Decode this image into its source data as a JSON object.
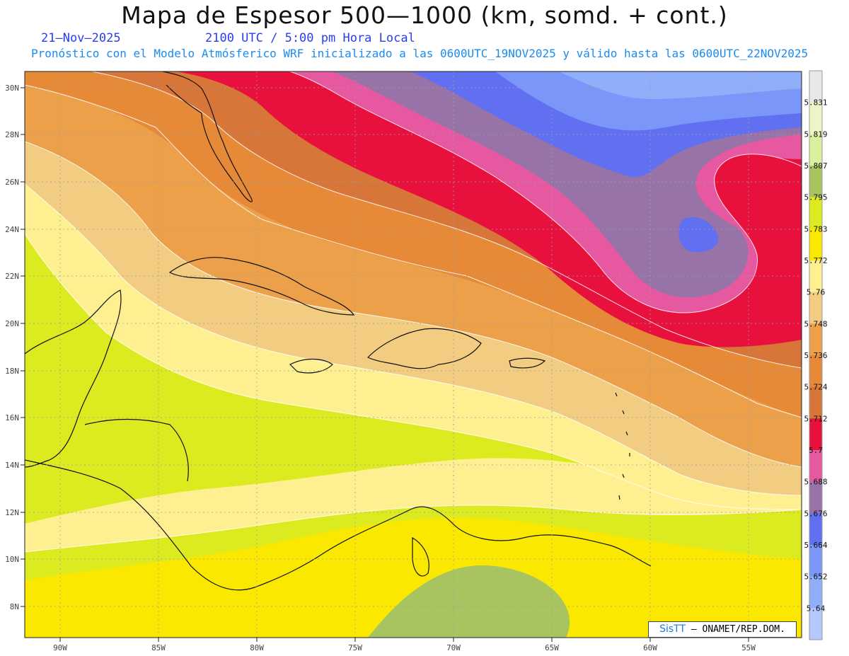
{
  "header": {
    "title": "Mapa de Espesor 500—1000 (km, somd. + cont.)",
    "date": "21—Nov—2025",
    "time": "2100 UTC / 5:00 pm Hora Local",
    "subtitle": "Pronóstico con el Modelo Atmósferico WRF inicializado a las 0600UTC_19NOV2025 y válido hasta las  0600UTC_22NOV2025"
  },
  "map": {
    "lon_labels": [
      "90W",
      "85W",
      "80W",
      "75W",
      "70W",
      "65W",
      "60W",
      "55W"
    ],
    "lat_labels": [
      "30N",
      "28N",
      "26N",
      "24N",
      "22N",
      "20N",
      "18N",
      "16N",
      "14N",
      "12N",
      "10N",
      "8N"
    ]
  },
  "colorbar": {
    "labels": [
      "5.831",
      "5.819",
      "5.807",
      "5.795",
      "5.783",
      "5.772",
      "5.76",
      "5.748",
      "5.736",
      "5.724",
      "5.712",
      "5.7",
      "5.688",
      "5.676",
      "5.664",
      "5.652",
      "5.64"
    ],
    "colors": [
      "#e8e8e8",
      "#eef6c8",
      "#dcef9c",
      "#a8c460",
      "#dcea20",
      "#fae800",
      "#fef090",
      "#f2cc80",
      "#eca04a",
      "#e68a38",
      "#d87538",
      "#e8103c",
      "#e659a0",
      "#9873a8",
      "#6070f0",
      "#7a96f8",
      "#90aefa",
      "#b4c8fc"
    ]
  },
  "credit": {
    "logo": "SisTT",
    "text": "— ONAMET/REP.DOM."
  }
}
